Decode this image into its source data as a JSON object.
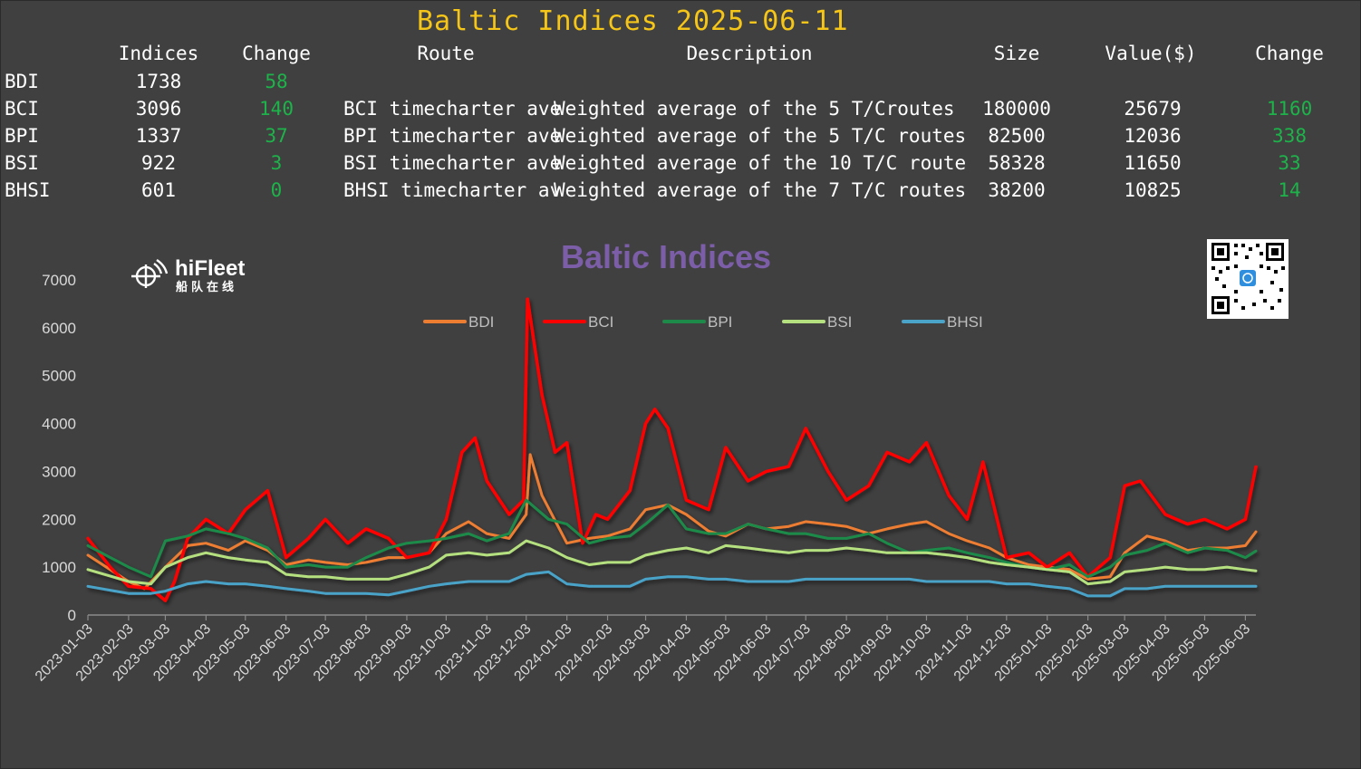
{
  "header": {
    "title": "Baltic Indices 2025-06-11",
    "columns": [
      "Indices",
      "Change",
      "Route",
      "Description",
      "Size",
      "Value($)",
      "Change"
    ]
  },
  "table": {
    "rows": [
      {
        "name": "BDI",
        "index": "1738",
        "change": "58",
        "route": "",
        "description": "",
        "size": "",
        "value": "",
        "value_change": ""
      },
      {
        "name": "BCI",
        "index": "3096",
        "change": "140",
        "route": "BCI timecharter ave",
        "description": "Weighted average of the 5 T/Croutes",
        "size": "180000",
        "value": "25679",
        "value_change": "1160"
      },
      {
        "name": "BPI",
        "index": "1337",
        "change": "37",
        "route": "BPI timecharter ave",
        "description": "Weighted average of the 5 T/C routes",
        "size": "82500",
        "value": "12036",
        "value_change": "338"
      },
      {
        "name": "BSI",
        "index": "922",
        "change": "3",
        "route": "BSI timecharter ave",
        "description": "Weighted average of the 10 T/C route",
        "size": "58328",
        "value": "11650",
        "value_change": "33"
      },
      {
        "name": "BHSI",
        "index": "601",
        "change": "0",
        "route": "BHSI timecharter av",
        "description": "Weighted average of the 7 T/C routes",
        "size": "38200",
        "value": "10825",
        "value_change": "14"
      }
    ]
  },
  "brand": {
    "name": "hiFleet",
    "subtitle": "船队在线",
    "logo_icon": "fleet-globe-icon",
    "qr_icon": "qr-code-icon"
  },
  "colors": {
    "background": "#404040",
    "title": "#f5c518",
    "positive": "#1db34a",
    "chart_title": "#7b5ea7",
    "axis_text": "#d9d9d9"
  },
  "chart_data": {
    "type": "line",
    "title": "Baltic Indices",
    "ylim": [
      0,
      7000
    ],
    "yticks": [
      0,
      1000,
      2000,
      3000,
      4000,
      5000,
      6000,
      7000
    ],
    "xlim": [
      "2023-01-03",
      "2025-06-11"
    ],
    "xticks": [
      "2023-01-03",
      "2023-02-03",
      "2023-03-03",
      "2023-04-03",
      "2023-05-03",
      "2023-06-03",
      "2023-07-03",
      "2023-08-03",
      "2023-09-03",
      "2023-10-03",
      "2023-11-03",
      "2023-12-03",
      "2024-01-03",
      "2024-02-03",
      "2024-03-03",
      "2024-04-03",
      "2024-05-03",
      "2024-06-03",
      "2024-07-03",
      "2024-08-03",
      "2024-09-03",
      "2024-10-03",
      "2024-11-03",
      "2024-12-03",
      "2025-01-03",
      "2025-02-03",
      "2025-03-03",
      "2025-04-03",
      "2025-05-03",
      "2025-06-03"
    ],
    "legend_position": "top-center",
    "grid": false,
    "series": [
      {
        "name": "BDI",
        "color": "#ed7d31",
        "width": 3,
        "x": [
          "2023-01-03",
          "2023-02-03",
          "2023-02-15",
          "2023-03-03",
          "2023-03-20",
          "2023-04-03",
          "2023-04-20",
          "2023-05-03",
          "2023-05-20",
          "2023-06-03",
          "2023-06-20",
          "2023-07-03",
          "2023-07-20",
          "2023-08-03",
          "2023-08-20",
          "2023-09-03",
          "2023-09-20",
          "2023-10-03",
          "2023-10-20",
          "2023-11-03",
          "2023-11-20",
          "2023-12-03",
          "2023-12-06",
          "2023-12-15",
          "2024-01-03",
          "2024-01-20",
          "2024-02-03",
          "2024-02-20",
          "2024-03-03",
          "2024-03-20",
          "2024-04-03",
          "2024-04-20",
          "2024-05-03",
          "2024-05-20",
          "2024-06-03",
          "2024-06-20",
          "2024-07-03",
          "2024-07-20",
          "2024-08-03",
          "2024-08-20",
          "2024-09-03",
          "2024-09-20",
          "2024-10-03",
          "2024-10-20",
          "2024-11-03",
          "2024-11-20",
          "2024-12-03",
          "2024-12-20",
          "2025-01-03",
          "2025-01-20",
          "2025-02-03",
          "2025-02-20",
          "2025-03-03",
          "2025-03-20",
          "2025-04-03",
          "2025-04-20",
          "2025-05-03",
          "2025-05-20",
          "2025-06-03",
          "2025-06-11"
        ],
        "values": [
          1250,
          700,
          550,
          1000,
          1450,
          1500,
          1350,
          1550,
          1350,
          1050,
          1150,
          1100,
          1050,
          1100,
          1200,
          1200,
          1300,
          1700,
          1950,
          1700,
          1600,
          2100,
          3350,
          2500,
          1500,
          1600,
          1650,
          1800,
          2200,
          2300,
          2100,
          1750,
          1650,
          1900,
          1800,
          1850,
          1950,
          1900,
          1850,
          1700,
          1800,
          1900,
          1950,
          1700,
          1550,
          1400,
          1200,
          1050,
          1000,
          950,
          750,
          800,
          1300,
          1650,
          1550,
          1350,
          1400,
          1400,
          1450,
          1738
        ]
      },
      {
        "name": "BCI",
        "color": "#ff0000",
        "width": 3.5,
        "x": [
          "2023-01-03",
          "2023-01-20",
          "2023-02-03",
          "2023-02-20",
          "2023-03-03",
          "2023-03-10",
          "2023-03-20",
          "2023-04-03",
          "2023-04-20",
          "2023-05-03",
          "2023-05-20",
          "2023-06-03",
          "2023-06-20",
          "2023-07-03",
          "2023-07-20",
          "2023-08-03",
          "2023-08-20",
          "2023-09-03",
          "2023-09-20",
          "2023-10-03",
          "2023-10-15",
          "2023-10-25",
          "2023-11-03",
          "2023-11-20",
          "2023-12-01",
          "2023-12-04",
          "2023-12-10",
          "2023-12-15",
          "2023-12-25",
          "2024-01-03",
          "2024-01-15",
          "2024-01-25",
          "2024-02-03",
          "2024-02-20",
          "2024-03-03",
          "2024-03-10",
          "2024-03-20",
          "2024-04-03",
          "2024-04-20",
          "2024-05-03",
          "2024-05-20",
          "2024-06-03",
          "2024-06-20",
          "2024-07-03",
          "2024-07-20",
          "2024-08-03",
          "2024-08-20",
          "2024-09-03",
          "2024-09-20",
          "2024-10-03",
          "2024-10-20",
          "2024-11-03",
          "2024-11-15",
          "2024-12-03",
          "2024-12-20",
          "2025-01-03",
          "2025-01-20",
          "2025-02-03",
          "2025-02-20",
          "2025-03-03",
          "2025-03-15",
          "2025-04-03",
          "2025-04-20",
          "2025-05-03",
          "2025-05-20",
          "2025-06-03",
          "2025-06-11"
        ],
        "values": [
          1600,
          1000,
          600,
          550,
          300,
          700,
          1600,
          2000,
          1700,
          2200,
          2600,
          1200,
          1600,
          2000,
          1500,
          1800,
          1600,
          1200,
          1300,
          2000,
          3400,
          3700,
          2800,
          2100,
          2400,
          6600,
          5500,
          4600,
          3400,
          3600,
          1500,
          2100,
          2000,
          2600,
          4000,
          4300,
          3900,
          2400,
          2200,
          3500,
          2800,
          3000,
          3100,
          3900,
          3000,
          2400,
          2700,
          3400,
          3200,
          3600,
          2500,
          2000,
          3200,
          1200,
          1300,
          1000,
          1300,
          800,
          1200,
          2700,
          2800,
          2100,
          1900,
          2000,
          1800,
          2000,
          3096
        ]
      },
      {
        "name": "BPI",
        "color": "#1e8a4a",
        "width": 3,
        "x": [
          "2023-01-03",
          "2023-02-03",
          "2023-02-20",
          "2023-03-03",
          "2023-03-20",
          "2023-04-03",
          "2023-04-20",
          "2023-05-03",
          "2023-05-20",
          "2023-06-03",
          "2023-06-20",
          "2023-07-03",
          "2023-07-20",
          "2023-08-03",
          "2023-08-20",
          "2023-09-03",
          "2023-09-20",
          "2023-10-03",
          "2023-10-20",
          "2023-11-03",
          "2023-11-20",
          "2023-12-03",
          "2023-12-20",
          "2024-01-03",
          "2024-01-20",
          "2024-02-03",
          "2024-02-20",
          "2024-03-03",
          "2024-03-20",
          "2024-04-03",
          "2024-04-20",
          "2024-05-03",
          "2024-05-20",
          "2024-06-03",
          "2024-06-20",
          "2024-07-03",
          "2024-07-20",
          "2024-08-03",
          "2024-08-20",
          "2024-09-03",
          "2024-09-20",
          "2024-10-03",
          "2024-10-20",
          "2024-11-03",
          "2024-11-20",
          "2024-12-03",
          "2024-12-20",
          "2025-01-03",
          "2025-01-20",
          "2025-02-03",
          "2025-02-20",
          "2025-03-03",
          "2025-03-20",
          "2025-04-03",
          "2025-04-20",
          "2025-05-03",
          "2025-05-20",
          "2025-06-03",
          "2025-06-11"
        ],
        "values": [
          1450,
          1000,
          800,
          1550,
          1650,
          1800,
          1700,
          1600,
          1400,
          1000,
          1050,
          1000,
          1000,
          1200,
          1400,
          1500,
          1550,
          1600,
          1700,
          1550,
          1700,
          2400,
          2000,
          1900,
          1500,
          1600,
          1650,
          1900,
          2300,
          1800,
          1700,
          1700,
          1900,
          1800,
          1700,
          1700,
          1600,
          1600,
          1700,
          1500,
          1300,
          1350,
          1400,
          1300,
          1200,
          1100,
          1000,
          950,
          1050,
          800,
          1000,
          1250,
          1350,
          1500,
          1300,
          1400,
          1350,
          1200,
          1337
        ]
      },
      {
        "name": "BSI",
        "color": "#b5e07f",
        "width": 3,
        "x": [
          "2023-01-03",
          "2023-02-03",
          "2023-02-20",
          "2023-03-03",
          "2023-03-20",
          "2023-04-03",
          "2023-04-20",
          "2023-05-03",
          "2023-05-20",
          "2023-06-03",
          "2023-06-20",
          "2023-07-03",
          "2023-07-20",
          "2023-08-03",
          "2023-08-20",
          "2023-09-03",
          "2023-09-20",
          "2023-10-03",
          "2023-10-20",
          "2023-11-03",
          "2023-11-20",
          "2023-12-03",
          "2023-12-20",
          "2024-01-03",
          "2024-01-20",
          "2024-02-03",
          "2024-02-20",
          "2024-03-03",
          "2024-03-20",
          "2024-04-03",
          "2024-04-20",
          "2024-05-03",
          "2024-05-20",
          "2024-06-03",
          "2024-06-20",
          "2024-07-03",
          "2024-07-20",
          "2024-08-03",
          "2024-08-20",
          "2024-09-03",
          "2024-09-20",
          "2024-10-03",
          "2024-10-20",
          "2024-11-03",
          "2024-11-20",
          "2024-12-03",
          "2024-12-20",
          "2025-01-03",
          "2025-01-20",
          "2025-02-03",
          "2025-02-20",
          "2025-03-03",
          "2025-03-20",
          "2025-04-03",
          "2025-04-20",
          "2025-05-03",
          "2025-05-20",
          "2025-06-03",
          "2025-06-11"
        ],
        "values": [
          950,
          700,
          650,
          1000,
          1200,
          1300,
          1200,
          1150,
          1100,
          850,
          800,
          800,
          750,
          750,
          750,
          850,
          1000,
          1250,
          1300,
          1250,
          1300,
          1550,
          1400,
          1200,
          1050,
          1100,
          1100,
          1250,
          1350,
          1400,
          1300,
          1450,
          1400,
          1350,
          1300,
          1350,
          1350,
          1400,
          1350,
          1300,
          1300,
          1300,
          1250,
          1200,
          1100,
          1050,
          1000,
          950,
          900,
          650,
          700,
          900,
          950,
          1000,
          950,
          950,
          1000,
          950,
          922
        ]
      },
      {
        "name": "BHSI",
        "color": "#4aa3c9",
        "width": 3,
        "x": [
          "2023-01-03",
          "2023-02-03",
          "2023-02-20",
          "2023-03-03",
          "2023-03-20",
          "2023-04-03",
          "2023-04-20",
          "2023-05-03",
          "2023-05-20",
          "2023-06-03",
          "2023-06-20",
          "2023-07-03",
          "2023-07-20",
          "2023-08-03",
          "2023-08-20",
          "2023-09-03",
          "2023-09-20",
          "2023-10-03",
          "2023-10-20",
          "2023-11-03",
          "2023-11-20",
          "2023-12-03",
          "2023-12-20",
          "2024-01-03",
          "2024-01-20",
          "2024-02-03",
          "2024-02-20",
          "2024-03-03",
          "2024-03-20",
          "2024-04-03",
          "2024-04-20",
          "2024-05-03",
          "2024-05-20",
          "2024-06-03",
          "2024-06-20",
          "2024-07-03",
          "2024-07-20",
          "2024-08-03",
          "2024-08-20",
          "2024-09-03",
          "2024-09-20",
          "2024-10-03",
          "2024-10-20",
          "2024-11-03",
          "2024-11-20",
          "2024-12-03",
          "2024-12-20",
          "2025-01-03",
          "2025-01-20",
          "2025-02-03",
          "2025-02-20",
          "2025-03-03",
          "2025-03-20",
          "2025-04-03",
          "2025-04-20",
          "2025-05-03",
          "2025-05-20",
          "2025-06-03",
          "2025-06-11"
        ],
        "values": [
          600,
          450,
          450,
          500,
          650,
          700,
          650,
          650,
          600,
          550,
          500,
          450,
          450,
          450,
          420,
          500,
          600,
          650,
          700,
          700,
          700,
          850,
          900,
          650,
          600,
          600,
          600,
          750,
          800,
          800,
          750,
          750,
          700,
          700,
          700,
          750,
          750,
          750,
          750,
          750,
          750,
          700,
          700,
          700,
          700,
          650,
          650,
          600,
          550,
          400,
          400,
          550,
          550,
          600,
          600,
          600,
          600,
          600,
          601
        ]
      }
    ]
  }
}
